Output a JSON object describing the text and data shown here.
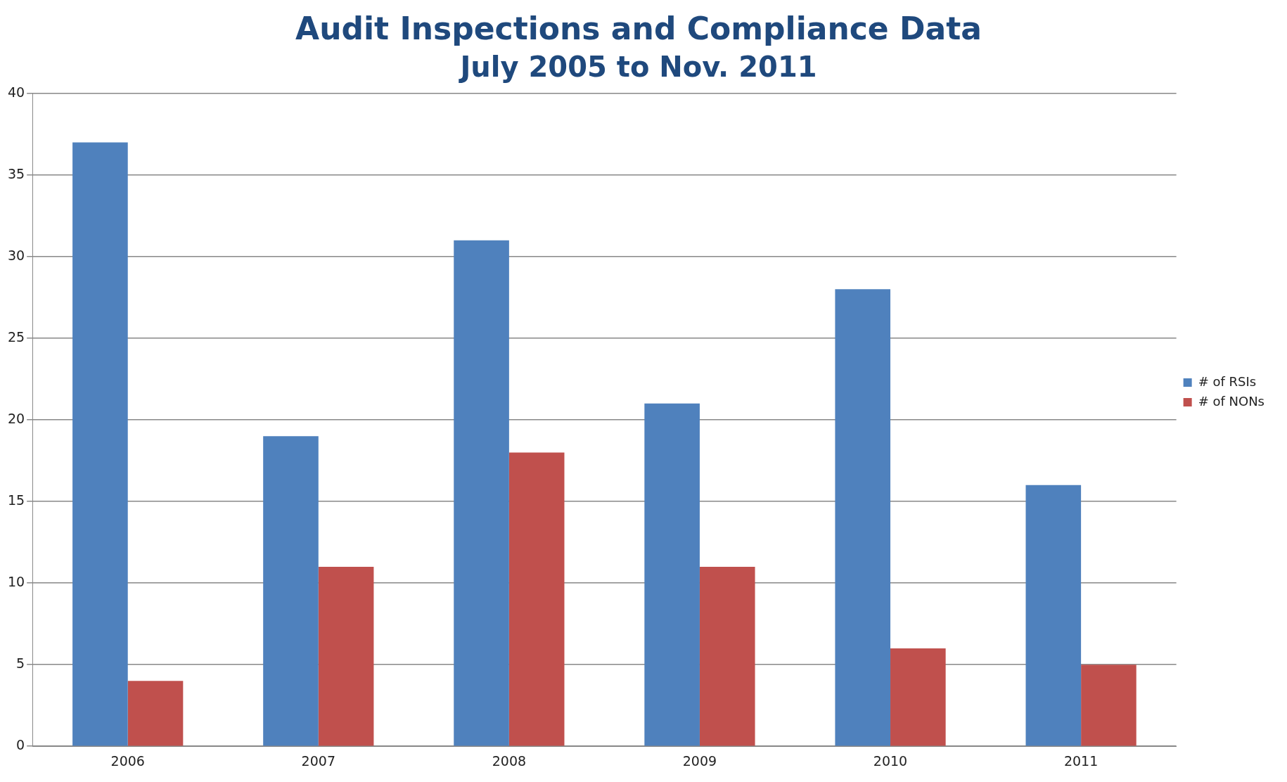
{
  "chart_data": {
    "type": "bar",
    "title": "Audit Inspections and Compliance Data",
    "subtitle": "July 2005 to Nov. 2011",
    "categories": [
      "2006",
      "2007",
      "2008",
      "2009",
      "2010",
      "2011"
    ],
    "series": [
      {
        "name": "# of RSIs",
        "color": "#4f81bd",
        "values": [
          37,
          19,
          31,
          21,
          28,
          16
        ]
      },
      {
        "name": "# of NONs",
        "color": "#c0504d",
        "values": [
          4,
          11,
          18,
          11,
          6,
          5
        ]
      }
    ],
    "ylim": [
      0,
      40
    ],
    "yticks": [
      0,
      5,
      10,
      15,
      20,
      25,
      30,
      35,
      40
    ],
    "grid": "y",
    "legend": "right"
  }
}
